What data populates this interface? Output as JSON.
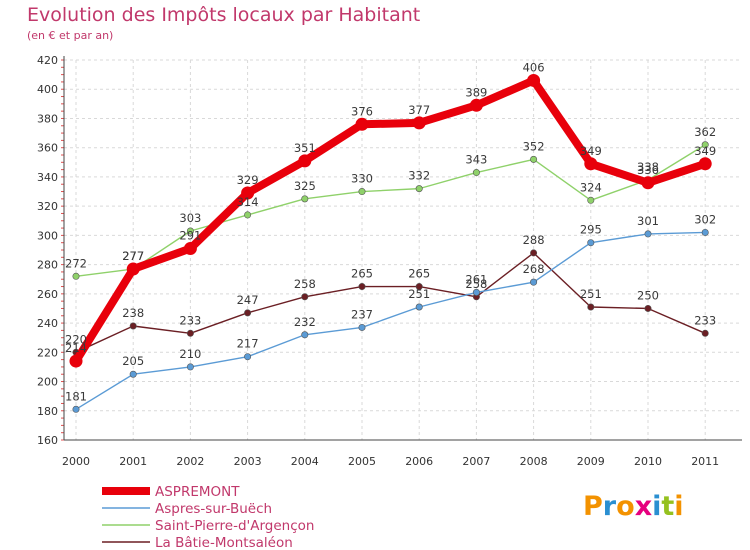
{
  "chart_data": {
    "type": "line",
    "title": "Evolution des Impôts locaux par Habitant",
    "subtitle": "(en € et par an)",
    "x": [
      "2000",
      "2001",
      "2002",
      "2003",
      "2004",
      "2005",
      "2006",
      "2007",
      "2008",
      "2009",
      "2010",
      "2011"
    ],
    "ylim": [
      160,
      420
    ],
    "yticks": [
      160,
      180,
      200,
      220,
      240,
      260,
      280,
      300,
      320,
      340,
      360,
      380,
      400,
      420
    ],
    "grid": true,
    "series": [
      {
        "name": "ASPREMONT",
        "color": "#e8000b",
        "values": [
          214,
          277,
          291,
          329,
          351,
          376,
          377,
          389,
          406,
          349,
          336,
          349
        ]
      },
      {
        "name": "Aspres-sur-Buëch",
        "color": "#5b9bd5",
        "values": [
          181,
          205,
          210,
          217,
          232,
          237,
          251,
          261,
          268,
          295,
          301,
          302
        ]
      },
      {
        "name": "Saint-Pierre-d'Argençon",
        "color": "#8fd16a",
        "values": [
          272,
          277,
          303,
          314,
          325,
          330,
          332,
          343,
          352,
          324,
          338,
          362
        ]
      },
      {
        "name": "La Bâtie-Montsaléon",
        "color": "#6b1f24",
        "values": [
          220,
          238,
          233,
          247,
          258,
          265,
          265,
          258,
          288,
          251,
          250,
          233
        ]
      }
    ]
  },
  "brand": {
    "name": "Proxiti",
    "letters": [
      "P",
      "r",
      "o",
      "x",
      "i",
      "t",
      "i"
    ],
    "colors": [
      "#f39200",
      "#2a8fd1",
      "#f39200",
      "#e6007e",
      "#2a8fd1",
      "#95c11f",
      "#f39200"
    ]
  }
}
